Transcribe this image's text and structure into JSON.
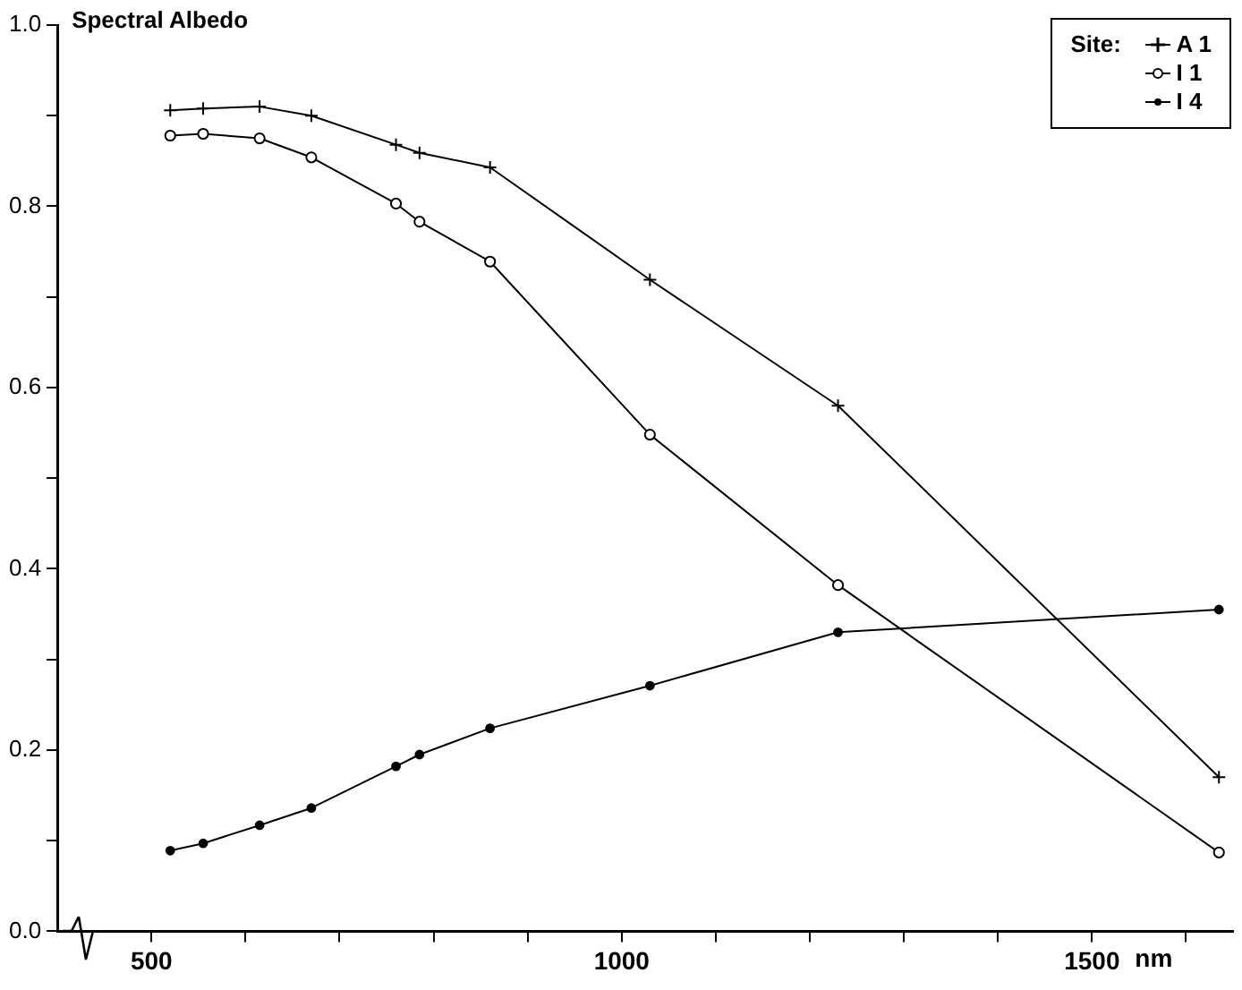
{
  "chart_data": {
    "type": "line",
    "ylabel": "Spectral Albedo",
    "xlabel": "nm",
    "legend_title": "Site:",
    "xlim": [
      400,
      1650
    ],
    "xticks": [
      500,
      {
        "value": 600,
        "label": null
      },
      {
        "value": 700,
        "label": null
      },
      {
        "value": 800,
        "label": null
      },
      {
        "value": 900,
        "label": null
      },
      1000,
      {
        "value": 1100,
        "label": null
      },
      {
        "value": 1200,
        "label": null
      },
      {
        "value": 1300,
        "label": null
      },
      {
        "value": 1400,
        "label": null
      },
      1500,
      {
        "value": 1600,
        "label": null
      }
    ],
    "ylim": [
      0,
      1
    ],
    "yticks": [
      {
        "value": 0,
        "label": "0.0"
      },
      {
        "value": 0.1,
        "label": null
      },
      0.2,
      {
        "value": 0.3,
        "label": null
      },
      0.4,
      {
        "value": 0.5,
        "label": null
      },
      0.6,
      {
        "value": 0.7,
        "label": null
      },
      0.8,
      {
        "value": 0.9,
        "label": null
      },
      {
        "value": 1,
        "label": "1.0"
      }
    ],
    "x": [
      520,
      555,
      615,
      670,
      760,
      785,
      860,
      1030,
      1230,
      1635
    ],
    "legend": "top right",
    "series": [
      {
        "name": "A 1",
        "color": "#000000",
        "marker": "cross",
        "values": [
          0.906,
          0.908,
          0.91,
          0.9,
          0.868,
          0.859,
          0.843,
          0.719,
          0.58,
          0.17
        ]
      },
      {
        "name": "I 1",
        "color": "#000000",
        "marker": "circle",
        "values": [
          0.878,
          0.88,
          0.875,
          0.854,
          0.803,
          0.783,
          0.739,
          0.548,
          0.382,
          0.087
        ]
      },
      {
        "name": "I 4",
        "color": "#000000",
        "marker": "dot",
        "values": [
          0.089,
          0.097,
          0.117,
          0.136,
          0.182,
          0.195,
          0.224,
          0.271,
          0.33,
          0.355
        ]
      }
    ]
  }
}
